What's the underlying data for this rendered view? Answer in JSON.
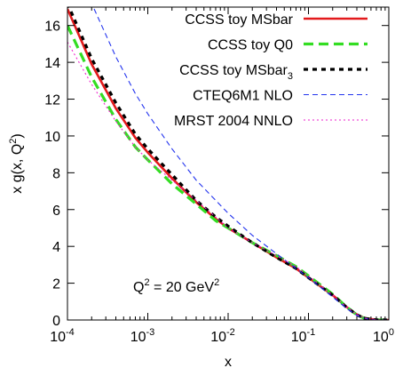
{
  "chart_data": {
    "type": "line",
    "xlabel": "x",
    "ylabel": "x g(x, Q",
    "ylabel_sup": "2",
    "ylabel_close": ")",
    "xscale": "log",
    "xlim": [
      0.0001,
      1
    ],
    "ylim": [
      0,
      17
    ],
    "x_ticks": [
      {
        "value": 0.0001,
        "base": "10",
        "exp": "-4"
      },
      {
        "value": 0.001,
        "base": "10",
        "exp": "-3"
      },
      {
        "value": 0.01,
        "base": "10",
        "exp": "-2"
      },
      {
        "value": 0.1,
        "base": "10",
        "exp": "-1"
      },
      {
        "value": 1,
        "base": "10",
        "exp": "0"
      }
    ],
    "y_ticks": [
      0,
      2,
      4,
      6,
      8,
      10,
      12,
      14,
      16
    ],
    "legend_position": "top-right",
    "annotation": {
      "prefix": "Q",
      "sup1": "2",
      "middle": " = 20 GeV",
      "sup2": "2"
    },
    "series": [
      {
        "name": "CCSS toy MSbar",
        "color": "#e31a1c",
        "style": "solid",
        "points": [
          [
            0.0001,
            16.9
          ],
          [
            0.0002,
            13.9
          ],
          [
            0.0004,
            11.5
          ],
          [
            0.0007,
            9.9
          ],
          [
            0.001,
            9.1
          ],
          [
            0.002,
            7.7
          ],
          [
            0.004,
            6.4
          ],
          [
            0.007,
            5.5
          ],
          [
            0.01,
            5.0
          ],
          [
            0.02,
            4.2
          ],
          [
            0.04,
            3.4
          ],
          [
            0.07,
            2.8
          ],
          [
            0.1,
            2.3
          ],
          [
            0.2,
            1.35
          ],
          [
            0.3,
            0.7
          ],
          [
            0.4,
            0.3
          ],
          [
            0.5,
            0.1
          ],
          [
            0.7,
            0.01
          ],
          [
            1,
            0
          ]
        ]
      },
      {
        "name": "CCSS toy Q0",
        "name_sub": "",
        "color": "#33dd22",
        "style": "long-dash",
        "points": [
          [
            0.0001,
            16.0
          ],
          [
            0.0002,
            13.2
          ],
          [
            0.0004,
            10.9
          ],
          [
            0.0007,
            9.4
          ],
          [
            0.001,
            8.7
          ],
          [
            0.002,
            7.4
          ],
          [
            0.004,
            6.3
          ],
          [
            0.007,
            5.4
          ],
          [
            0.01,
            5.0
          ],
          [
            0.02,
            4.2
          ],
          [
            0.04,
            3.5
          ],
          [
            0.07,
            2.9
          ],
          [
            0.1,
            2.4
          ],
          [
            0.2,
            1.4
          ],
          [
            0.3,
            0.7
          ],
          [
            0.4,
            0.28
          ],
          [
            0.5,
            0.08
          ],
          [
            0.7,
            0.01
          ],
          [
            1,
            0
          ]
        ]
      },
      {
        "name": "CCSS toy MSbar",
        "name_sub": "3",
        "color": "#000000",
        "style": "short-dash",
        "points": [
          [
            0.0001,
            17.2
          ],
          [
            0.0002,
            14.2
          ],
          [
            0.0004,
            11.8
          ],
          [
            0.0007,
            10.1
          ],
          [
            0.001,
            9.3
          ],
          [
            0.002,
            7.9
          ],
          [
            0.004,
            6.5
          ],
          [
            0.007,
            5.6
          ],
          [
            0.01,
            5.1
          ],
          [
            0.02,
            4.2
          ],
          [
            0.04,
            3.4
          ],
          [
            0.07,
            2.8
          ],
          [
            0.1,
            2.3
          ],
          [
            0.2,
            1.35
          ],
          [
            0.3,
            0.68
          ],
          [
            0.4,
            0.28
          ],
          [
            0.5,
            0.09
          ],
          [
            0.7,
            0.01
          ],
          [
            1,
            0
          ]
        ]
      },
      {
        "name": "CTEQ6M1 NLO",
        "name_sub": "",
        "color": "#2233ee",
        "style": "thin-dash",
        "points": [
          [
            0.0001,
            21.0
          ],
          [
            0.0002,
            17.2
          ],
          [
            0.0004,
            14.3
          ],
          [
            0.0007,
            12.3
          ],
          [
            0.001,
            11.2
          ],
          [
            0.002,
            9.3
          ],
          [
            0.004,
            7.6
          ],
          [
            0.007,
            6.5
          ],
          [
            0.01,
            5.8
          ],
          [
            0.02,
            4.6
          ],
          [
            0.04,
            3.6
          ],
          [
            0.07,
            2.8
          ],
          [
            0.1,
            2.3
          ],
          [
            0.2,
            1.25
          ],
          [
            0.3,
            0.62
          ],
          [
            0.4,
            0.25
          ],
          [
            0.5,
            0.08
          ],
          [
            0.7,
            0.01
          ],
          [
            1,
            0
          ]
        ]
      },
      {
        "name": "MRST 2004 NNLO",
        "name_sub": "",
        "color": "#ee22cc",
        "style": "dotted",
        "points": [
          [
            0.0001,
            15.1
          ],
          [
            0.0002,
            12.8
          ],
          [
            0.0004,
            10.8
          ],
          [
            0.0007,
            9.4
          ],
          [
            0.001,
            8.7
          ],
          [
            0.002,
            7.6
          ],
          [
            0.004,
            6.5
          ],
          [
            0.007,
            5.6
          ],
          [
            0.01,
            5.0
          ],
          [
            0.02,
            4.2
          ],
          [
            0.04,
            3.5
          ],
          [
            0.07,
            2.9
          ],
          [
            0.1,
            2.4
          ],
          [
            0.2,
            1.35
          ],
          [
            0.3,
            0.7
          ],
          [
            0.4,
            0.3
          ],
          [
            0.5,
            0.1
          ],
          [
            0.7,
            0.01
          ],
          [
            1,
            0
          ]
        ]
      }
    ]
  }
}
